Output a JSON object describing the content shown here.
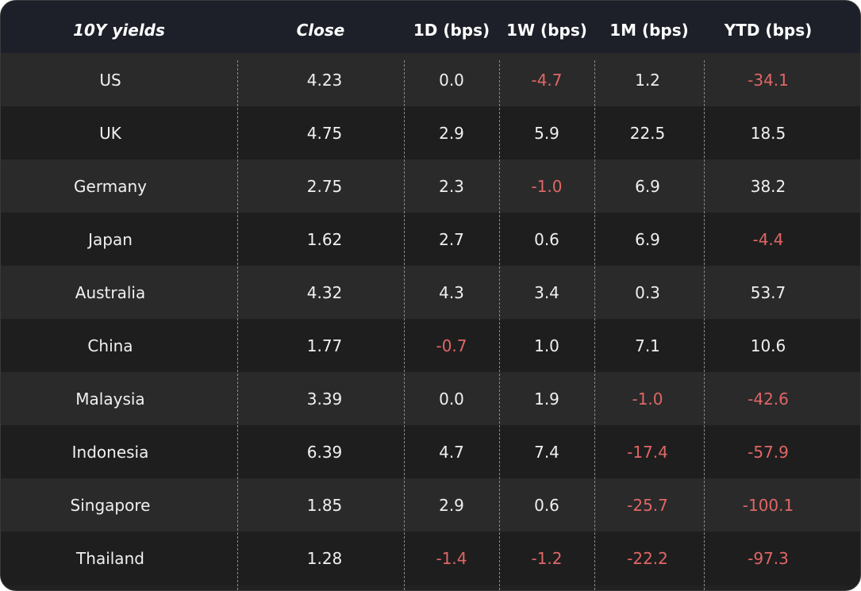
{
  "colors": {
    "header_bg": "#1d2029",
    "row_light": "#2a2a2a",
    "row_dark": "#1e1e1e",
    "text": "#f0f0f0",
    "negative": "#e06666"
  },
  "table": {
    "headers": [
      "10Y yields",
      "Close",
      "1D (bps)",
      "1W (bps)",
      "1M (bps)",
      "YTD (bps)"
    ],
    "rows": [
      {
        "country": "US",
        "close": "4.23",
        "d1": "0.0",
        "w1": "-4.7",
        "m1": "1.2",
        "ytd": "-34.1"
      },
      {
        "country": "UK",
        "close": "4.75",
        "d1": "2.9",
        "w1": "5.9",
        "m1": "22.5",
        "ytd": "18.5"
      },
      {
        "country": "Germany",
        "close": "2.75",
        "d1": "2.3",
        "w1": "-1.0",
        "m1": "6.9",
        "ytd": "38.2"
      },
      {
        "country": "Japan",
        "close": "1.62",
        "d1": "2.7",
        "w1": "0.6",
        "m1": "6.9",
        "ytd": "-4.4"
      },
      {
        "country": "Australia",
        "close": "4.32",
        "d1": "4.3",
        "w1": "3.4",
        "m1": "0.3",
        "ytd": "53.7"
      },
      {
        "country": "China",
        "close": "1.77",
        "d1": "-0.7",
        "w1": "1.0",
        "m1": "7.1",
        "ytd": "10.6"
      },
      {
        "country": "Malaysia",
        "close": "3.39",
        "d1": "0.0",
        "w1": "1.9",
        "m1": "-1.0",
        "ytd": "-42.6"
      },
      {
        "country": "Indonesia",
        "close": "6.39",
        "d1": "4.7",
        "w1": "7.4",
        "m1": "-17.4",
        "ytd": "-57.9"
      },
      {
        "country": "Singapore",
        "close": "1.85",
        "d1": "2.9",
        "w1": "0.6",
        "m1": "-25.7",
        "ytd": "-100.1"
      },
      {
        "country": "Thailand",
        "close": "1.28",
        "d1": "-1.4",
        "w1": "-1.2",
        "m1": "-22.2",
        "ytd": "-97.3"
      }
    ]
  }
}
